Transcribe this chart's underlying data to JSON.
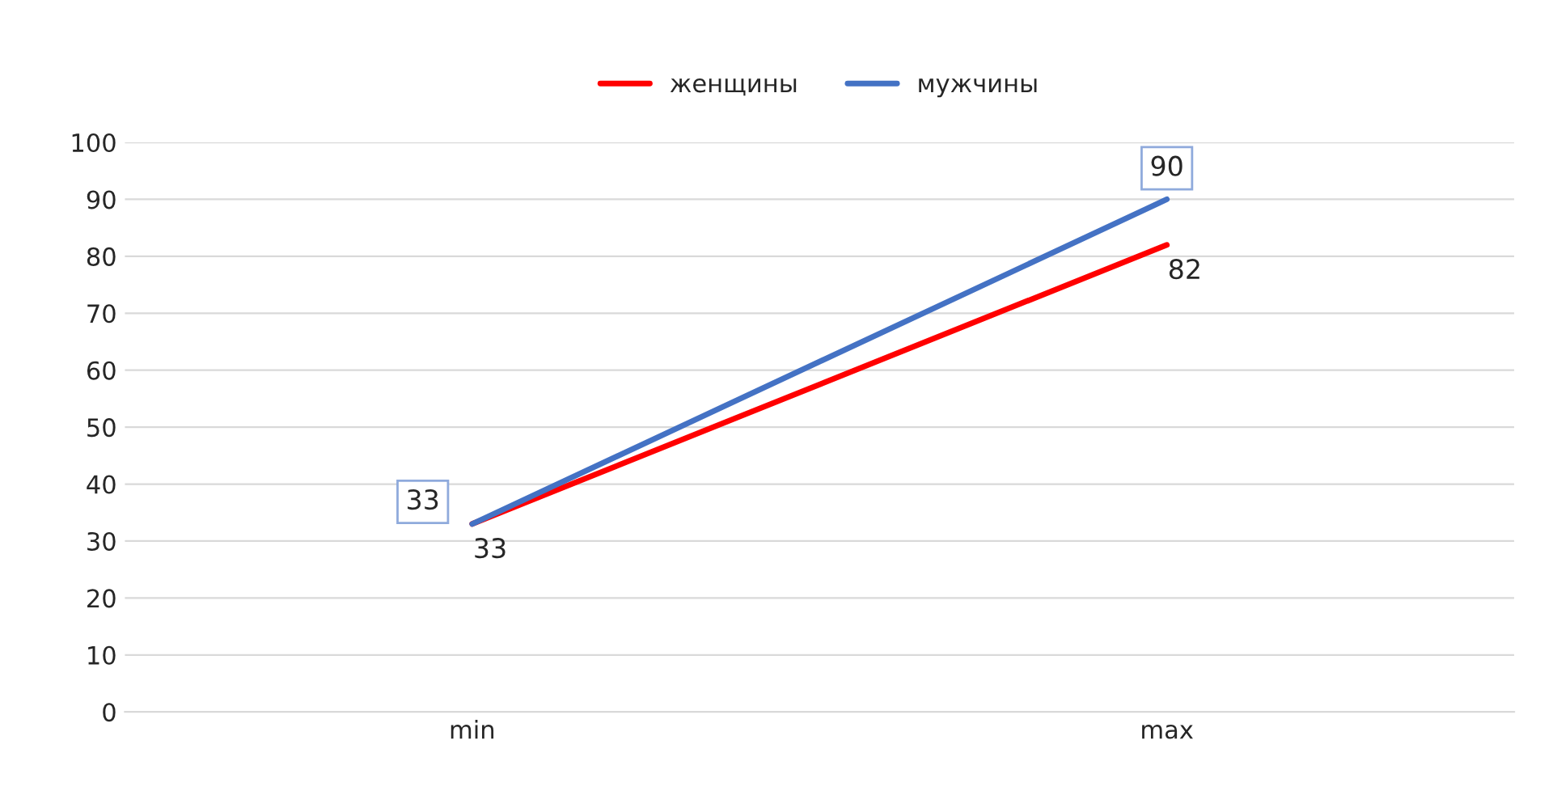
{
  "chart_data": {
    "type": "line",
    "categories": [
      "min",
      "max"
    ],
    "series": [
      {
        "name": "женщины",
        "color": "#ff0000",
        "values": [
          33,
          82
        ]
      },
      {
        "name": "мужчины",
        "color": "#4472c4",
        "values": [
          33,
          90
        ]
      }
    ],
    "ylim": [
      0,
      100
    ],
    "yticks": [
      0,
      10,
      20,
      30,
      40,
      50,
      60,
      70,
      80,
      90,
      100
    ],
    "grid": "y",
    "legend": "top",
    "data_labels": true,
    "marker": "none",
    "line_style": "solid"
  }
}
